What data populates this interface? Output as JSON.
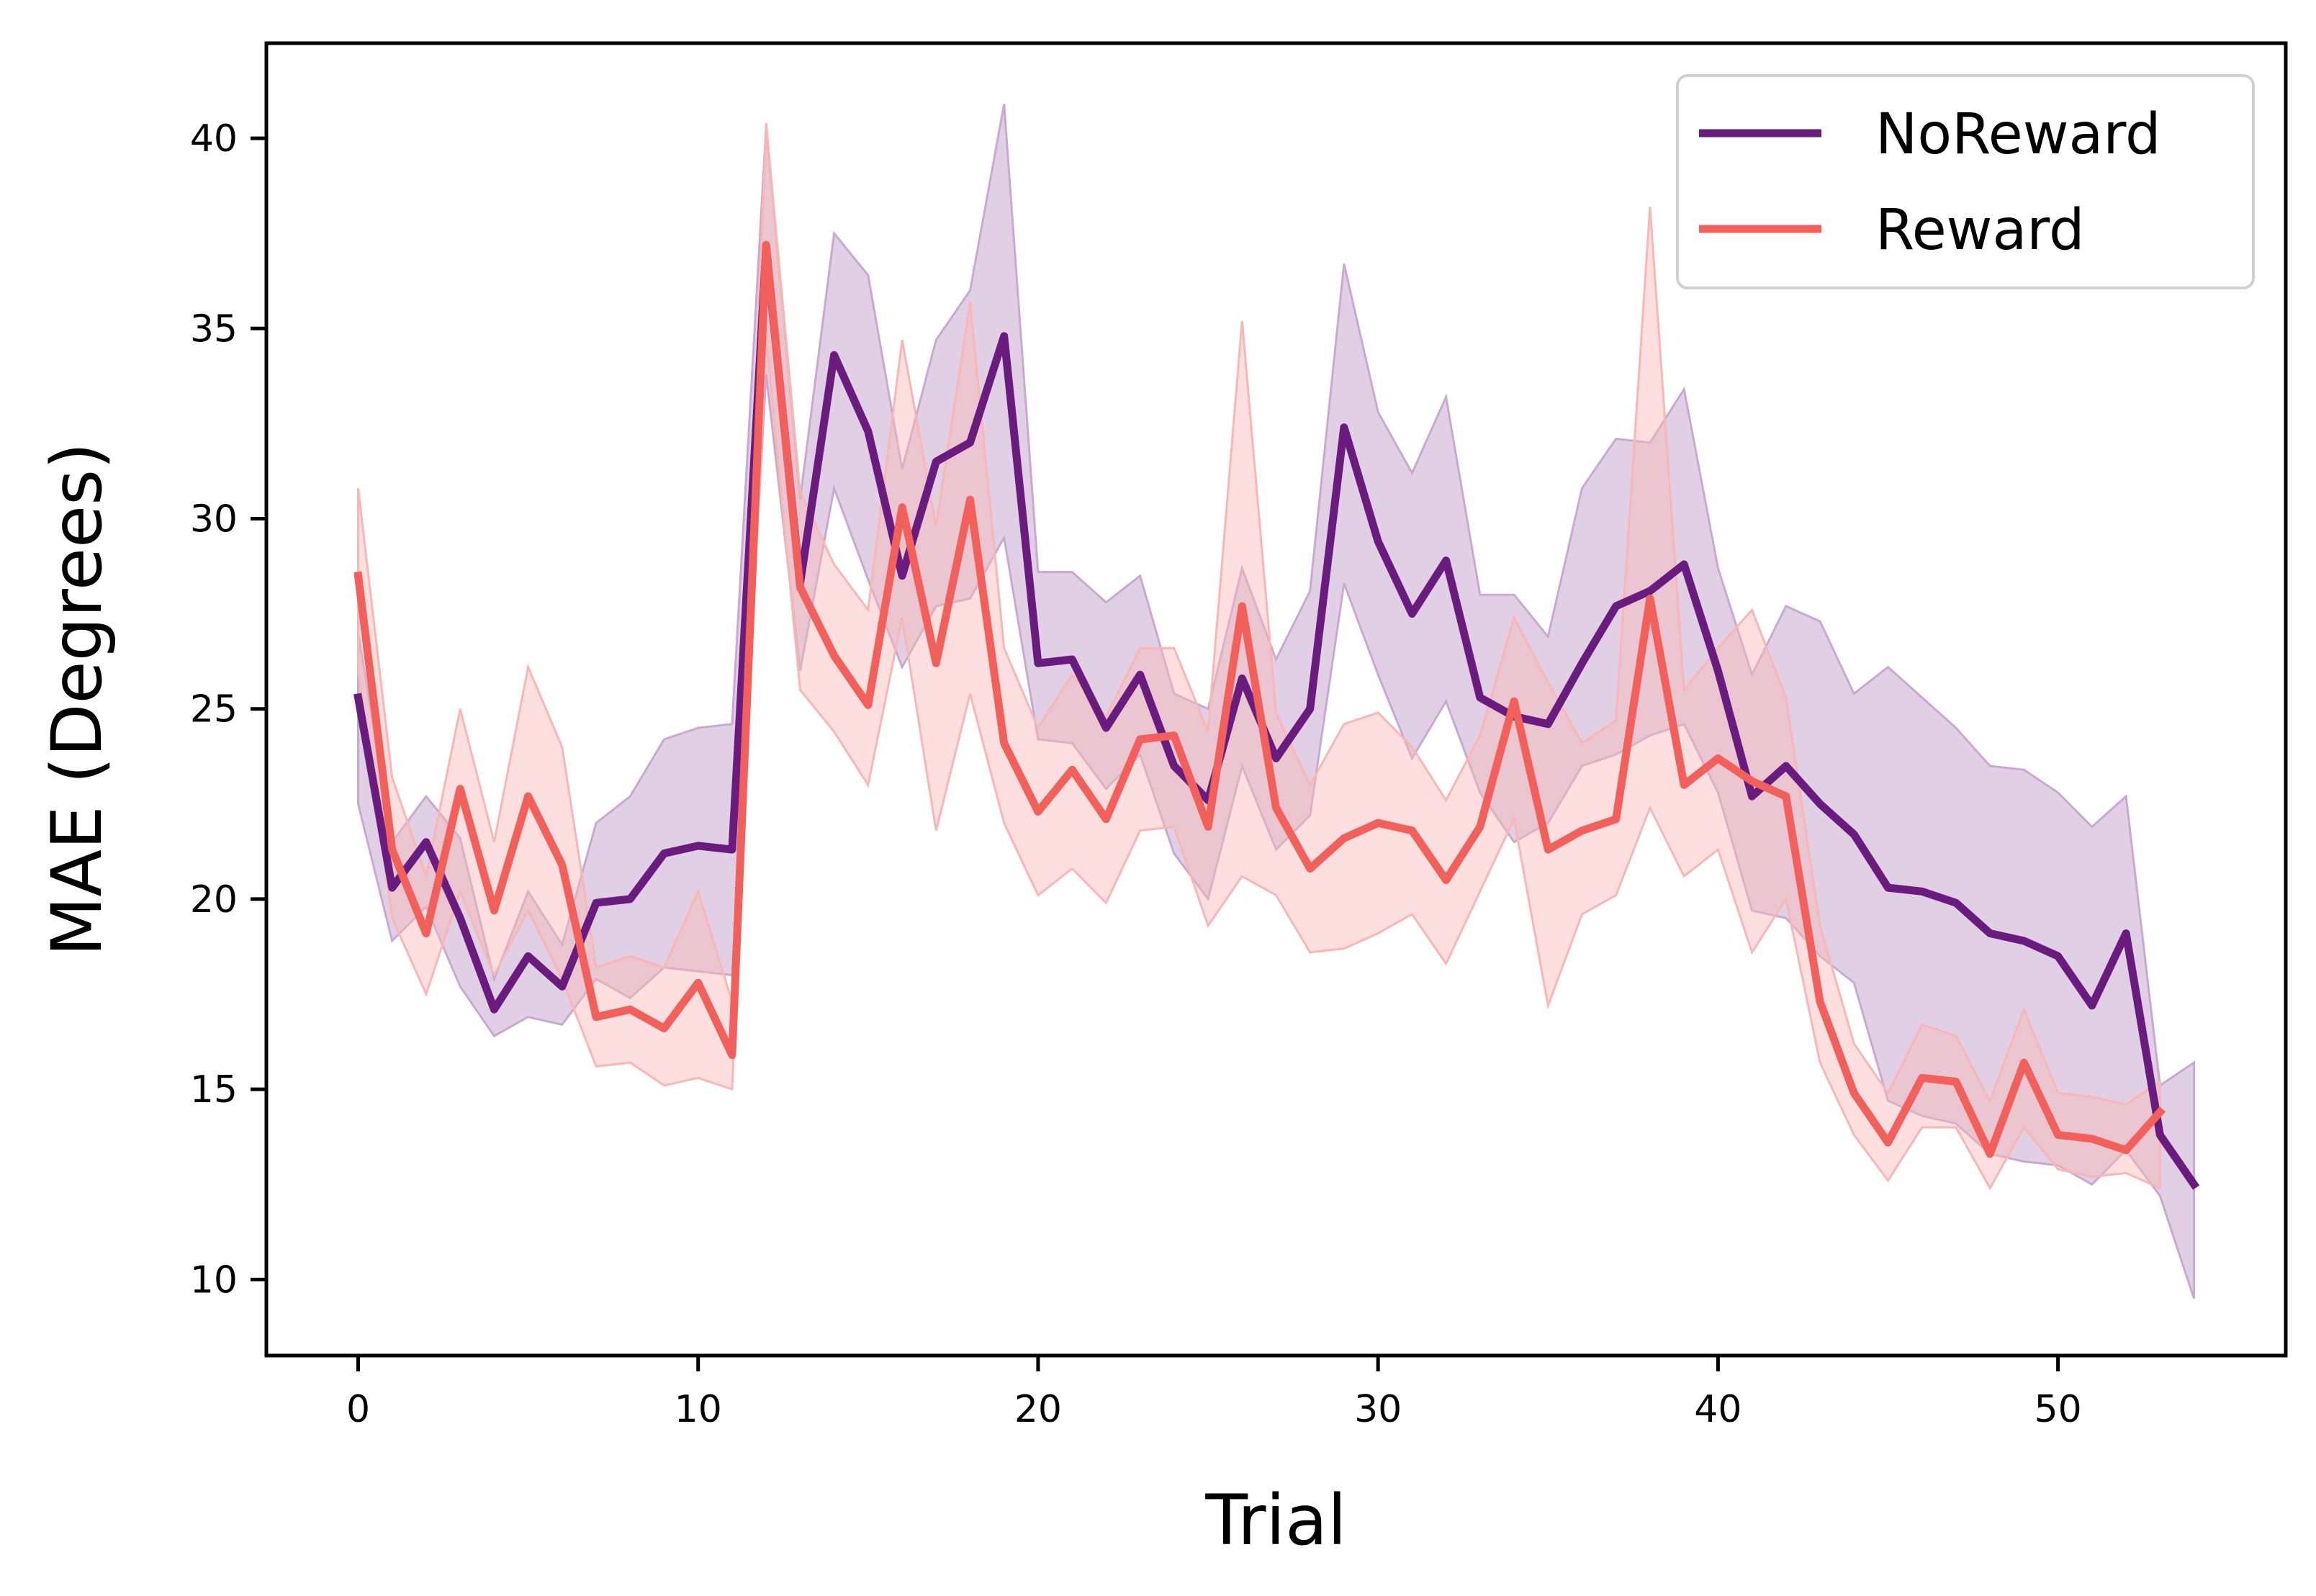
{
  "chart_data": {
    "type": "line",
    "title": "",
    "xlabel": "Trial",
    "ylabel": "MAE (Degrees)",
    "xlim": [
      -2.7,
      56.7
    ],
    "ylim": [
      8,
      42.5
    ],
    "xticks": [
      0,
      10,
      20,
      30,
      40,
      50
    ],
    "yticks": [
      10,
      15,
      20,
      25,
      30,
      35,
      40
    ],
    "grid": false,
    "legend_position": "top-right",
    "series": [
      {
        "name": "NoReward",
        "color": "#6a1c7e",
        "band_color": "#c9a9cf",
        "x": [
          0,
          1,
          2,
          3,
          4,
          5,
          6,
          7,
          8,
          9,
          10,
          11,
          12,
          13,
          14,
          15,
          16,
          17,
          18,
          19,
          20,
          21,
          22,
          23,
          24,
          25,
          26,
          27,
          28,
          29,
          30,
          31,
          32,
          33,
          34,
          35,
          36,
          37,
          38,
          39,
          40,
          41,
          42,
          43,
          44,
          45,
          46,
          47,
          48,
          49,
          50,
          51,
          52,
          53,
          54
        ],
        "y": [
          25.3,
          20.3,
          21.5,
          19.5,
          17.1,
          18.5,
          17.7,
          19.9,
          20.0,
          21.2,
          21.4,
          21.3,
          37.1,
          28.3,
          34.3,
          32.3,
          28.5,
          31.5,
          32.0,
          34.8,
          26.2,
          26.3,
          24.5,
          25.9,
          23.5,
          22.6,
          25.8,
          23.7,
          25.0,
          32.4,
          29.4,
          27.5,
          28.9,
          25.3,
          24.8,
          24.6,
          26.2,
          27.7,
          28.1,
          28.8,
          26.0,
          22.7,
          23.5,
          22.5,
          21.7,
          20.3,
          20.2,
          19.9,
          19.1,
          18.9,
          18.5,
          17.2,
          19.1,
          13.8,
          12.5
        ],
        "lower": [
          22.5,
          18.9,
          19.8,
          17.7,
          16.4,
          16.9,
          16.7,
          17.9,
          17.4,
          18.2,
          18.1,
          18.0,
          33.8,
          26.0,
          30.8,
          28.4,
          26.1,
          27.7,
          27.9,
          29.5,
          24.2,
          24.1,
          22.9,
          23.8,
          21.2,
          20.0,
          23.5,
          21.3,
          22.2,
          28.3,
          25.9,
          23.7,
          25.2,
          22.8,
          21.5,
          22.0,
          23.5,
          23.8,
          24.3,
          24.6,
          22.8,
          19.7,
          19.5,
          18.5,
          17.8,
          14.7,
          14.3,
          14.1,
          13.3,
          13.1,
          13.0,
          12.5,
          13.4,
          12.2,
          9.5
        ],
        "upper": [
          27.0,
          21.5,
          22.7,
          21.6,
          17.9,
          20.2,
          18.8,
          22.0,
          22.7,
          24.2,
          24.5,
          24.6,
          40.3,
          30.5,
          37.5,
          36.4,
          31.3,
          34.7,
          36.0,
          40.9,
          28.6,
          28.6,
          27.8,
          28.5,
          25.4,
          25.0,
          28.7,
          26.3,
          28.1,
          36.7,
          32.8,
          31.2,
          33.2,
          28.0,
          28.0,
          26.9,
          30.8,
          32.1,
          32.0,
          33.4,
          28.7,
          25.9,
          27.7,
          27.3,
          25.4,
          26.1,
          25.3,
          24.5,
          23.5,
          23.4,
          22.8,
          21.9,
          22.7,
          15.1,
          15.7
        ]
      },
      {
        "name": "Reward",
        "color": "#f2605c",
        "band_color": "#f8b7b5",
        "x": [
          0,
          1,
          2,
          3,
          4,
          5,
          6,
          7,
          8,
          9,
          10,
          11,
          12,
          13,
          14,
          15,
          16,
          17,
          18,
          19,
          20,
          21,
          22,
          23,
          24,
          25,
          26,
          27,
          28,
          29,
          30,
          31,
          32,
          33,
          34,
          35,
          36,
          37,
          38,
          39,
          40,
          41,
          42,
          43,
          44,
          45,
          46,
          47,
          48,
          49,
          50,
          51,
          52,
          53
        ],
        "y": [
          28.5,
          21.3,
          19.1,
          22.9,
          19.7,
          22.7,
          20.9,
          16.9,
          17.1,
          16.6,
          17.8,
          15.9,
          37.2,
          28.2,
          26.4,
          25.1,
          30.3,
          26.2,
          30.5,
          24.1,
          22.3,
          23.4,
          22.1,
          24.2,
          24.3,
          21.9,
          27.7,
          22.4,
          20.8,
          21.6,
          22.0,
          21.8,
          20.5,
          21.9,
          25.2,
          21.3,
          21.8,
          22.1,
          27.9,
          23.0,
          23.7,
          23.1,
          22.7,
          17.3,
          14.9,
          13.6,
          15.3,
          15.2,
          13.3,
          15.7,
          13.8,
          13.7,
          13.4,
          14.4
        ],
        "lower": [
          26.0,
          19.5,
          17.5,
          20.2,
          18.0,
          19.7,
          17.9,
          15.6,
          15.7,
          15.1,
          15.3,
          15.0,
          34.8,
          25.5,
          24.4,
          23.0,
          27.4,
          21.8,
          25.4,
          22.0,
          20.1,
          20.8,
          19.9,
          21.8,
          21.9,
          19.3,
          20.6,
          20.1,
          18.6,
          18.7,
          19.1,
          19.6,
          18.3,
          20.2,
          22.1,
          17.2,
          19.6,
          20.1,
          22.4,
          20.6,
          21.3,
          18.6,
          20.0,
          15.7,
          13.8,
          12.6,
          14.0,
          14.0,
          12.4,
          14.0,
          12.9,
          12.7,
          12.8,
          12.4
        ],
        "upper": [
          30.8,
          23.2,
          20.6,
          25.0,
          21.5,
          26.1,
          24.0,
          18.2,
          18.5,
          18.2,
          20.2,
          17.3,
          40.4,
          30.7,
          28.8,
          27.6,
          34.7,
          29.8,
          35.7,
          26.6,
          24.5,
          25.9,
          24.8,
          26.6,
          26.6,
          24.4,
          35.2,
          24.9,
          23.0,
          24.6,
          24.9,
          24.0,
          22.6,
          24.3,
          27.4,
          25.7,
          24.1,
          24.7,
          38.2,
          25.5,
          26.6,
          27.6,
          25.3,
          19.3,
          16.2,
          14.9,
          16.7,
          16.4,
          14.7,
          17.1,
          14.9,
          14.8,
          14.6,
          15.2
        ]
      }
    ]
  }
}
